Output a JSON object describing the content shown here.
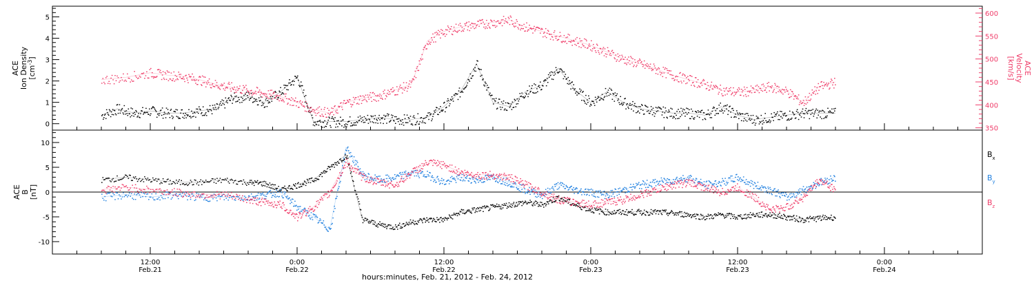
{
  "chart_data": [
    {
      "type": "scatter",
      "panel": "top",
      "ylabel_left": [
        "ACE",
        "Ion Density",
        "[cm",
        "-3",
        "]"
      ],
      "ylabel_right": [
        "ACE",
        "Velocity",
        "[km/s]"
      ],
      "ylim_left": [
        -0.3,
        5.5
      ],
      "ylim_right": [
        345,
        615
      ],
      "yticks_left": [
        "0",
        "1",
        "2",
        "3",
        "4",
        "5"
      ],
      "yticks_right": [
        "350",
        "400",
        "450",
        "500",
        "550",
        "600"
      ],
      "colors": {
        "density": "#000000",
        "velocity": "#ef3b68"
      },
      "series": [
        {
          "name": "density",
          "x": [
            0,
            2,
            4,
            6,
            8,
            10,
            12,
            14,
            16,
            18,
            20,
            22,
            24,
            26,
            28,
            30,
            32,
            34,
            36,
            38,
            40,
            42,
            44,
            46,
            48,
            50,
            52,
            54,
            56,
            58,
            60,
            62,
            64,
            66,
            68,
            70,
            72,
            74,
            76,
            78,
            80,
            82,
            84,
            86,
            88,
            90
          ],
          "values": [
            0.4,
            0.7,
            0.5,
            0.6,
            0.5,
            0.5,
            0.6,
            0.7,
            1.2,
            1.3,
            1.0,
            1.5,
            2.2,
            0.1,
            0.1,
            0.1,
            0.2,
            0.3,
            0.2,
            0.2,
            0.3,
            0.8,
            1.5,
            2.8,
            1.0,
            0.8,
            1.5,
            1.8,
            2.6,
            1.6,
            1.0,
            1.5,
            1.0,
            0.7,
            0.6,
            0.5,
            0.5,
            0.4,
            0.8,
            0.4,
            0.2,
            0.3,
            0.4,
            0.5,
            0.5,
            0.5
          ]
        },
        {
          "name": "velocity",
          "x": [
            0,
            3,
            6,
            8,
            10,
            12,
            14,
            16,
            18,
            20,
            22,
            24,
            26,
            28,
            30,
            32,
            34,
            36,
            38,
            40,
            42,
            44,
            46,
            48,
            50,
            52,
            54,
            56,
            58,
            60,
            62,
            64,
            66,
            68,
            70,
            72,
            74,
            76,
            78,
            80,
            82,
            84,
            86,
            88,
            90
          ],
          "values": [
            455,
            460,
            470,
            465,
            462,
            455,
            445,
            438,
            432,
            425,
            418,
            405,
            390,
            382,
            405,
            415,
            420,
            432,
            445,
            540,
            560,
            570,
            575,
            580,
            585,
            570,
            560,
            550,
            540,
            530,
            515,
            500,
            490,
            478,
            465,
            455,
            445,
            432,
            428,
            432,
            440,
            430,
            405,
            440,
            450
          ]
        }
      ]
    },
    {
      "type": "scatter",
      "panel": "bottom",
      "ylabel": [
        "ACE",
        "B",
        "[nT]"
      ],
      "ylim": [
        -12.5,
        12.5
      ],
      "yticks": [
        "-10",
        "-5",
        "0",
        "5",
        "10"
      ],
      "legend": [
        {
          "label": "B",
          "sub": "x",
          "color": "#000000"
        },
        {
          "label": "B",
          "sub": "y",
          "color": "#1e7fdf"
        },
        {
          "label": "B",
          "sub": "z",
          "color": "#ef3b68"
        }
      ],
      "series": [
        {
          "name": "Bx",
          "x": [
            0,
            3,
            6,
            9,
            12,
            15,
            18,
            20,
            22,
            24,
            26,
            28,
            30,
            32,
            34,
            36,
            38,
            40,
            42,
            44,
            46,
            48,
            50,
            52,
            54,
            56,
            58,
            60,
            62,
            64,
            66,
            68,
            70,
            72,
            74,
            76,
            78,
            80,
            82,
            84,
            86,
            88,
            90
          ],
          "values": [
            2.5,
            3.0,
            2.5,
            2.0,
            2.0,
            2.5,
            2.0,
            1.8,
            0.5,
            1.5,
            2.5,
            5.0,
            7.5,
            -5.5,
            -6.5,
            -7.0,
            -6.0,
            -5.5,
            -5.5,
            -4.0,
            -3.5,
            -3.0,
            -2.5,
            -2.0,
            -2.5,
            -1.0,
            -2.5,
            -3.5,
            -4.0,
            -4.0,
            -4.0,
            -4.0,
            -4.2,
            -4.5,
            -5.0,
            -4.5,
            -5.0,
            -4.5,
            -4.5,
            -5.0,
            -5.5,
            -5.2,
            -5.0
          ]
        },
        {
          "name": "By",
          "x": [
            0,
            3,
            6,
            9,
            12,
            15,
            18,
            20,
            22,
            24,
            26,
            28,
            30,
            32,
            34,
            36,
            38,
            40,
            42,
            44,
            46,
            48,
            50,
            52,
            54,
            56,
            58,
            60,
            62,
            64,
            66,
            68,
            70,
            72,
            74,
            76,
            78,
            80,
            82,
            84,
            86,
            88,
            90
          ],
          "values": [
            -1.0,
            -0.5,
            -1.0,
            -0.5,
            -1.0,
            -1.0,
            -1.0,
            -0.5,
            0.0,
            -3.0,
            -5.0,
            -7.5,
            9.0,
            3.5,
            2.5,
            3.0,
            4.0,
            3.5,
            2.0,
            3.0,
            2.5,
            3.0,
            2.0,
            0.5,
            -0.5,
            1.5,
            0.5,
            0.0,
            -0.5,
            0.5,
            1.5,
            2.0,
            2.5,
            3.0,
            1.5,
            2.0,
            3.0,
            1.5,
            0.5,
            -1.0,
            0.5,
            2.0,
            3.0
          ]
        },
        {
          "name": "Bz",
          "x": [
            0,
            3,
            6,
            9,
            12,
            15,
            18,
            20,
            22,
            24,
            26,
            28,
            30,
            32,
            34,
            36,
            38,
            40,
            42,
            44,
            46,
            48,
            50,
            52,
            54,
            56,
            58,
            60,
            62,
            64,
            66,
            68,
            70,
            72,
            74,
            76,
            78,
            80,
            82,
            84,
            86,
            88,
            90
          ],
          "values": [
            0.5,
            1.0,
            0.5,
            0.0,
            -0.5,
            -0.5,
            -1.5,
            -2.0,
            -2.5,
            -5.0,
            -3.0,
            0.0,
            6.0,
            3.0,
            2.0,
            1.5,
            4.0,
            6.0,
            5.5,
            4.0,
            3.5,
            3.5,
            3.0,
            1.5,
            0.0,
            -1.5,
            -2.0,
            -2.5,
            -2.0,
            -1.5,
            -0.5,
            0.5,
            1.5,
            2.0,
            1.0,
            0.0,
            1.0,
            -1.0,
            -3.5,
            -3.0,
            -1.0,
            2.5,
            0.5
          ]
        }
      ]
    }
  ],
  "xaxis": {
    "xlim": [
      -6,
      108
    ],
    "ticks": [
      {
        "x": 6,
        "time": "12:00",
        "date": "Feb.21"
      },
      {
        "x": 24,
        "time": "0:00",
        "date": "Feb.22"
      },
      {
        "x": 42,
        "time": "12:00",
        "date": "Feb.22"
      },
      {
        "x": 60,
        "time": "0:00",
        "date": "Feb.23"
      },
      {
        "x": 78,
        "time": "12:00",
        "date": "Feb.23"
      },
      {
        "x": 96,
        "time": "0:00",
        "date": "Feb.24"
      }
    ],
    "label": "hours:minutes, Feb. 21, 2012 - Feb. 24, 2012"
  }
}
